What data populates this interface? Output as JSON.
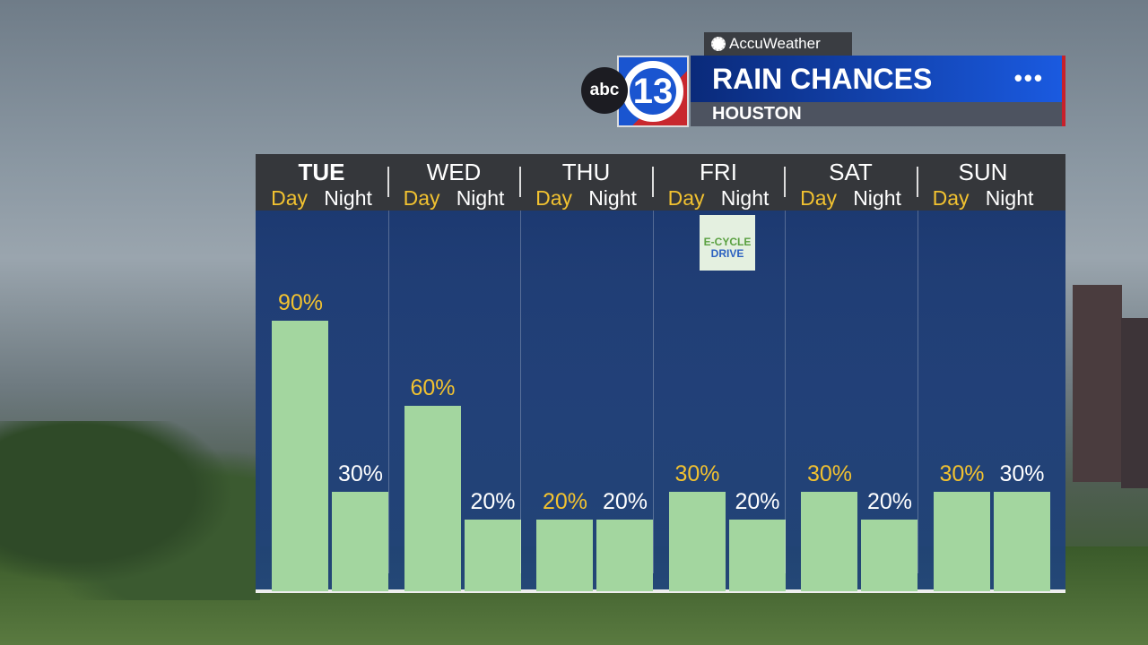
{
  "header": {
    "brand": "AccuWeather",
    "network": "abc",
    "channel": "13",
    "title": "RAIN CHANCES",
    "location": "HOUSTON",
    "menu_icon": "more-dots-icon"
  },
  "sponsor": {
    "line1": "E-CYCLE",
    "line2": "DRIVE"
  },
  "chart_data": {
    "type": "bar",
    "title": "RAIN CHANCES",
    "subtitle": "HOUSTON",
    "categories": [
      "TUE",
      "WED",
      "THU",
      "FRI",
      "SAT",
      "SUN"
    ],
    "sub_labels": {
      "day": "Day",
      "night": "Night"
    },
    "series": [
      {
        "name": "Day",
        "values": [
          90,
          60,
          20,
          30,
          30,
          30
        ],
        "color": "#a3d69f",
        "label_color": "#f2c230"
      },
      {
        "name": "Night",
        "values": [
          30,
          20,
          20,
          20,
          20,
          30
        ],
        "color": "#a3d69f",
        "label_color": "#ffffff"
      }
    ],
    "unit": "%",
    "ylim": [
      0,
      100
    ]
  }
}
